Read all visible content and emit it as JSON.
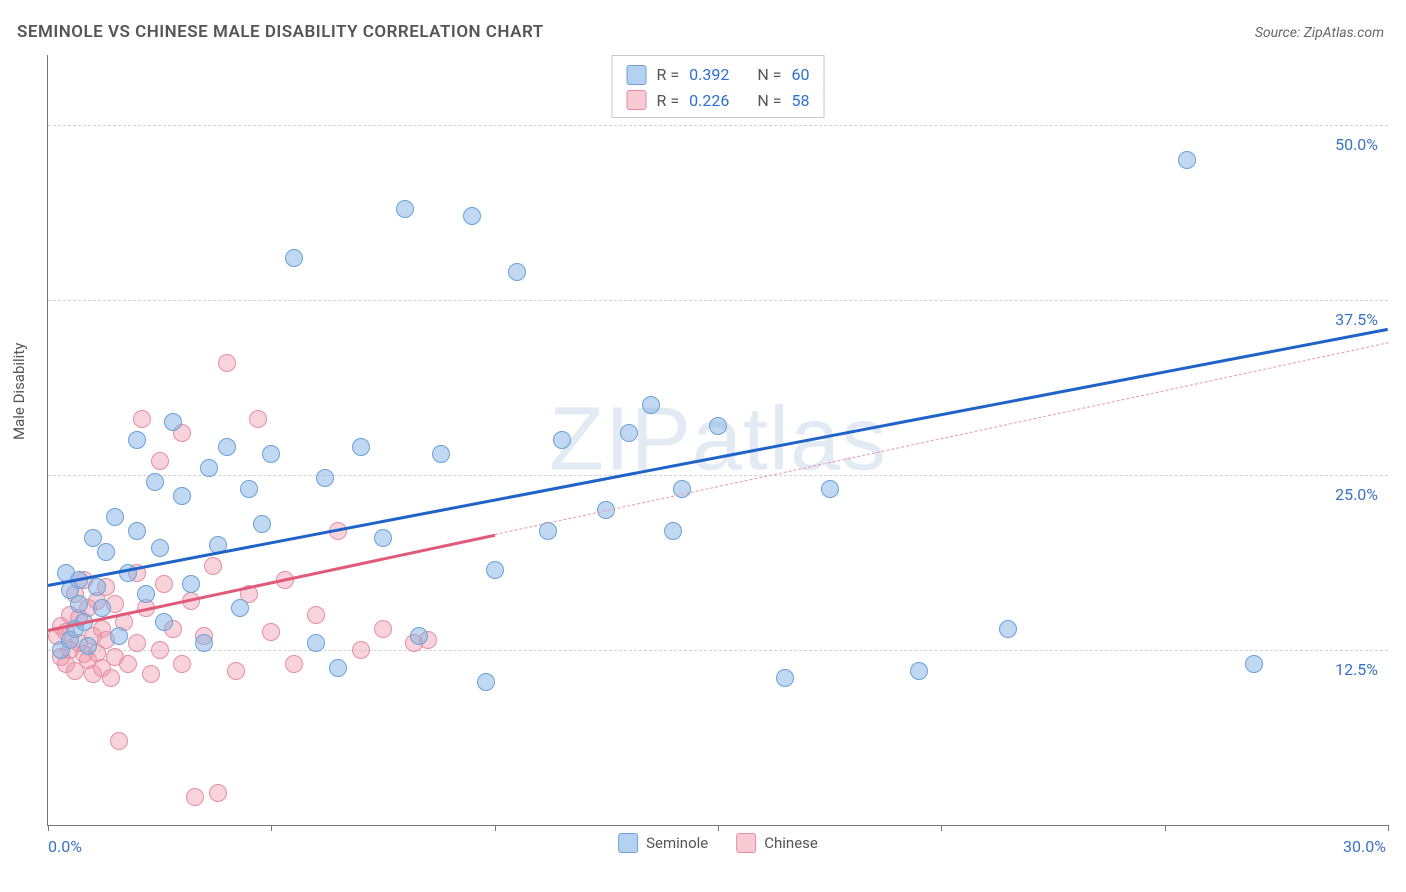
{
  "title": "SEMINOLE VS CHINESE MALE DISABILITY CORRELATION CHART",
  "source": "Source: ZipAtlas.com",
  "ylabel": "Male Disability",
  "watermark": "ZIPatlas",
  "chart": {
    "type": "scatter",
    "xlim": [
      0,
      30
    ],
    "ylim": [
      0,
      55
    ],
    "xtick_positions": [
      0,
      5,
      10,
      15,
      20,
      25,
      30
    ],
    "xtick_labels_shown": {
      "0": "0.0%",
      "30": "30.0%"
    },
    "ygrid": [
      12.5,
      25.0,
      37.5,
      50.0
    ],
    "ygrid_labels": [
      "12.5%",
      "25.0%",
      "37.5%",
      "50.0%"
    ],
    "grid_color": "#d0d0d0",
    "axis_color": "#777777",
    "background_color": "#ffffff",
    "tick_label_color": "#3a72c4",
    "tick_fontsize": 16,
    "marker_radius": 9,
    "series": {
      "seminole": {
        "label": "Seminole",
        "fill": "rgba(130,178,228,0.5)",
        "stroke": "#6da0d8",
        "R": "0.392",
        "N": "60",
        "trend": {
          "x0": 0,
          "y0": 17.2,
          "x1": 30,
          "y1": 35.5,
          "color": "#1f63c9",
          "width": 3,
          "style": "solid"
        },
        "points": [
          [
            0.3,
            12.5
          ],
          [
            0.4,
            18.0
          ],
          [
            0.5,
            13.2
          ],
          [
            0.5,
            16.8
          ],
          [
            0.6,
            14.0
          ],
          [
            0.7,
            15.8
          ],
          [
            0.7,
            17.5
          ],
          [
            0.8,
            14.5
          ],
          [
            0.9,
            12.8
          ],
          [
            1.0,
            20.5
          ],
          [
            1.1,
            17.0
          ],
          [
            1.2,
            15.5
          ],
          [
            1.3,
            19.5
          ],
          [
            1.5,
            22.0
          ],
          [
            1.6,
            13.5
          ],
          [
            1.8,
            18.0
          ],
          [
            2.0,
            27.5
          ],
          [
            2.0,
            21.0
          ],
          [
            2.2,
            16.5
          ],
          [
            2.4,
            24.5
          ],
          [
            2.5,
            19.8
          ],
          [
            2.6,
            14.5
          ],
          [
            2.8,
            28.8
          ],
          [
            3.0,
            23.5
          ],
          [
            3.2,
            17.2
          ],
          [
            3.5,
            13.0
          ],
          [
            3.6,
            25.5
          ],
          [
            3.8,
            20.0
          ],
          [
            4.0,
            27.0
          ],
          [
            4.3,
            15.5
          ],
          [
            4.5,
            24.0
          ],
          [
            4.8,
            21.5
          ],
          [
            5.0,
            26.5
          ],
          [
            5.5,
            40.5
          ],
          [
            6.0,
            13.0
          ],
          [
            6.2,
            24.8
          ],
          [
            6.5,
            11.2
          ],
          [
            7.0,
            27.0
          ],
          [
            7.5,
            20.5
          ],
          [
            8.0,
            44.0
          ],
          [
            8.3,
            13.5
          ],
          [
            8.8,
            26.5
          ],
          [
            9.5,
            43.5
          ],
          [
            9.8,
            10.2
          ],
          [
            10.0,
            18.2
          ],
          [
            10.5,
            39.5
          ],
          [
            11.2,
            21.0
          ],
          [
            11.5,
            27.5
          ],
          [
            12.5,
            22.5
          ],
          [
            13.0,
            28.0
          ],
          [
            13.5,
            30.0
          ],
          [
            14.0,
            21.0
          ],
          [
            14.2,
            24.0
          ],
          [
            15.0,
            28.5
          ],
          [
            16.5,
            10.5
          ],
          [
            17.5,
            24.0
          ],
          [
            19.5,
            11.0
          ],
          [
            21.5,
            14.0
          ],
          [
            25.5,
            47.5
          ],
          [
            27.0,
            11.5
          ]
        ]
      },
      "chinese": {
        "label": "Chinese",
        "fill": "rgba(240,150,170,0.42)",
        "stroke": "#e38fa3",
        "R": "0.226",
        "N": "58",
        "trend_solid": {
          "x0": 0,
          "y0": 14.0,
          "x1": 10,
          "y1": 20.8,
          "color": "#e05a7b",
          "width": 3,
          "style": "solid"
        },
        "trend_dash": {
          "x0": 10,
          "y0": 20.8,
          "x1": 30,
          "y1": 34.5,
          "color": "#e89aab",
          "width": 1.2,
          "style": "dashed"
        },
        "points": [
          [
            0.2,
            13.5
          ],
          [
            0.3,
            12.0
          ],
          [
            0.3,
            14.2
          ],
          [
            0.4,
            11.5
          ],
          [
            0.4,
            13.8
          ],
          [
            0.5,
            15.0
          ],
          [
            0.5,
            12.5
          ],
          [
            0.6,
            16.5
          ],
          [
            0.6,
            11.0
          ],
          [
            0.7,
            13.0
          ],
          [
            0.7,
            14.8
          ],
          [
            0.8,
            12.2
          ],
          [
            0.8,
            17.5
          ],
          [
            0.9,
            11.8
          ],
          [
            0.9,
            15.5
          ],
          [
            1.0,
            13.5
          ],
          [
            1.0,
            10.8
          ],
          [
            1.1,
            16.0
          ],
          [
            1.1,
            12.3
          ],
          [
            1.2,
            14.0
          ],
          [
            1.2,
            11.2
          ],
          [
            1.3,
            17.0
          ],
          [
            1.3,
            13.2
          ],
          [
            1.4,
            10.5
          ],
          [
            1.5,
            15.8
          ],
          [
            1.5,
            12.0
          ],
          [
            1.6,
            6.0
          ],
          [
            1.7,
            14.5
          ],
          [
            1.8,
            11.5
          ],
          [
            2.0,
            18.0
          ],
          [
            2.0,
            13.0
          ],
          [
            2.1,
            29.0
          ],
          [
            2.2,
            15.5
          ],
          [
            2.3,
            10.8
          ],
          [
            2.5,
            26.0
          ],
          [
            2.5,
            12.5
          ],
          [
            2.6,
            17.2
          ],
          [
            2.8,
            14.0
          ],
          [
            3.0,
            28.0
          ],
          [
            3.0,
            11.5
          ],
          [
            3.2,
            16.0
          ],
          [
            3.3,
            2.0
          ],
          [
            3.5,
            13.5
          ],
          [
            3.7,
            18.5
          ],
          [
            3.8,
            2.3
          ],
          [
            4.0,
            33.0
          ],
          [
            4.2,
            11.0
          ],
          [
            4.5,
            16.5
          ],
          [
            4.7,
            29.0
          ],
          [
            5.0,
            13.8
          ],
          [
            5.3,
            17.5
          ],
          [
            5.5,
            11.5
          ],
          [
            6.0,
            15.0
          ],
          [
            6.5,
            21.0
          ],
          [
            7.0,
            12.5
          ],
          [
            7.5,
            14.0
          ],
          [
            8.2,
            13.0
          ],
          [
            8.5,
            13.2
          ]
        ]
      }
    }
  },
  "stats_label_R": "R = ",
  "stats_label_N": "N = ",
  "legend": {
    "seminole": "Seminole",
    "chinese": "Chinese"
  }
}
